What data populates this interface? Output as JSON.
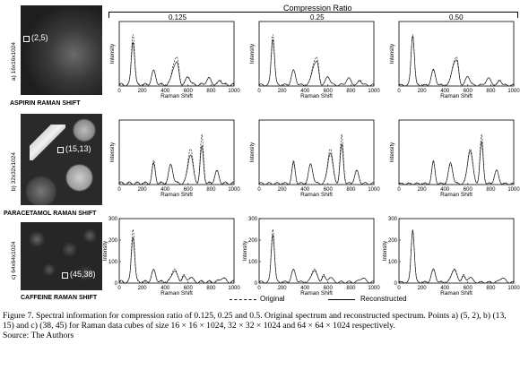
{
  "header": {
    "title": "Compression Ratio",
    "ratios": [
      "0.125",
      "0.25",
      "0.50"
    ]
  },
  "rows": [
    {
      "id": "aspirin",
      "size_label": "a) 16x16x1024",
      "point": "(2,5)",
      "material": "ASPIRIN RAMAN SHIFT",
      "yticks": [
        "",
        "",
        "",
        ""
      ],
      "show_y_numbers": false
    },
    {
      "id": "paracetamol",
      "size_label": "b) 32x32x1024",
      "point": "(15,13)",
      "material": "PARACETAMOL RAMAN SHIFT",
      "yticks": [],
      "show_y_numbers": false
    },
    {
      "id": "caffeine",
      "size_label": "c) 64x64x1024",
      "point": "(45,38)",
      "material": "CAFFEINE RAMAN SHIFT",
      "yticks": [
        "0",
        "100",
        "200",
        "300"
      ],
      "show_y_numbers": true
    }
  ],
  "axes": {
    "xlabel": "Raman Shift",
    "ylabel": "Intensity",
    "xticks": [
      "0",
      "200",
      "400",
      "600",
      "800",
      "1000"
    ]
  },
  "legend": {
    "original": "Original",
    "reconstructed": "Reconstructed"
  },
  "caption": {
    "text": "Figure 7. Spectral information for compression ratio of 0.125, 0.25 and 0.5. Original spectrum and reconstructed spectrum. Points a) (5, 2), b) (13, 15) and c) (38, 45) for Raman data cubes of size 16 × 16 × 1024, 32 × 32 × 1024 and 64 × 64 × 1024 respectively.",
    "source": "Source: The Authors"
  },
  "chart_data": [
    {
      "type": "line",
      "row": "aspirin",
      "xlim": [
        0,
        1000
      ],
      "ylim": [
        0,
        100
      ],
      "peaks": [
        [
          120,
          80
        ],
        [
          300,
          22
        ],
        [
          480,
          35
        ],
        [
          510,
          25
        ],
        [
          600,
          14
        ],
        [
          780,
          10
        ],
        [
          880,
          9
        ]
      ]
    },
    {
      "type": "line",
      "row": "paracetamol",
      "xlim": [
        0,
        1000
      ],
      "ylim": [
        0,
        100
      ],
      "peaks": [
        [
          300,
          35
        ],
        [
          450,
          30
        ],
        [
          620,
          55
        ],
        [
          720,
          75
        ],
        [
          850,
          20
        ]
      ]
    },
    {
      "type": "line",
      "row": "caffeine",
      "xlim": [
        0,
        1000
      ],
      "ylim": [
        0,
        300
      ],
      "peaks": [
        [
          120,
          250
        ],
        [
          300,
          55
        ],
        [
          480,
          65
        ],
        [
          560,
          35
        ],
        [
          620,
          25
        ],
        [
          900,
          20
        ]
      ]
    }
  ]
}
